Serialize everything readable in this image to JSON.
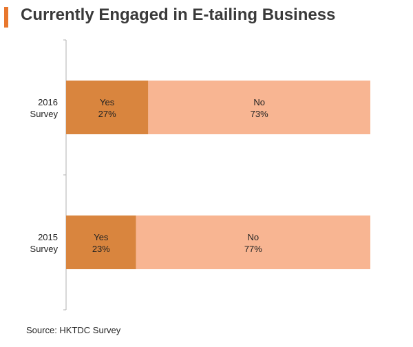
{
  "title": "Currently Engaged in E-tailing Business",
  "source": "Source: HKTDC Survey",
  "colors": {
    "accent": "#e8772e",
    "yes": "#d9853e",
    "no": "#f8b592",
    "axis": "#b0b0b0",
    "text": "#222222"
  },
  "chart_data": {
    "type": "bar",
    "orientation": "horizontal",
    "stacked": true,
    "percent": true,
    "categories": [
      "2016 Survey",
      "2015 Survey"
    ],
    "series": [
      {
        "name": "Yes",
        "values": [
          27,
          23
        ],
        "labels": [
          "27%",
          "23%"
        ]
      },
      {
        "name": "No",
        "values": [
          73,
          77
        ],
        "labels": [
          "73%",
          "77%"
        ]
      }
    ],
    "xlim": [
      0,
      100
    ],
    "grid": false,
    "legend": "none"
  }
}
